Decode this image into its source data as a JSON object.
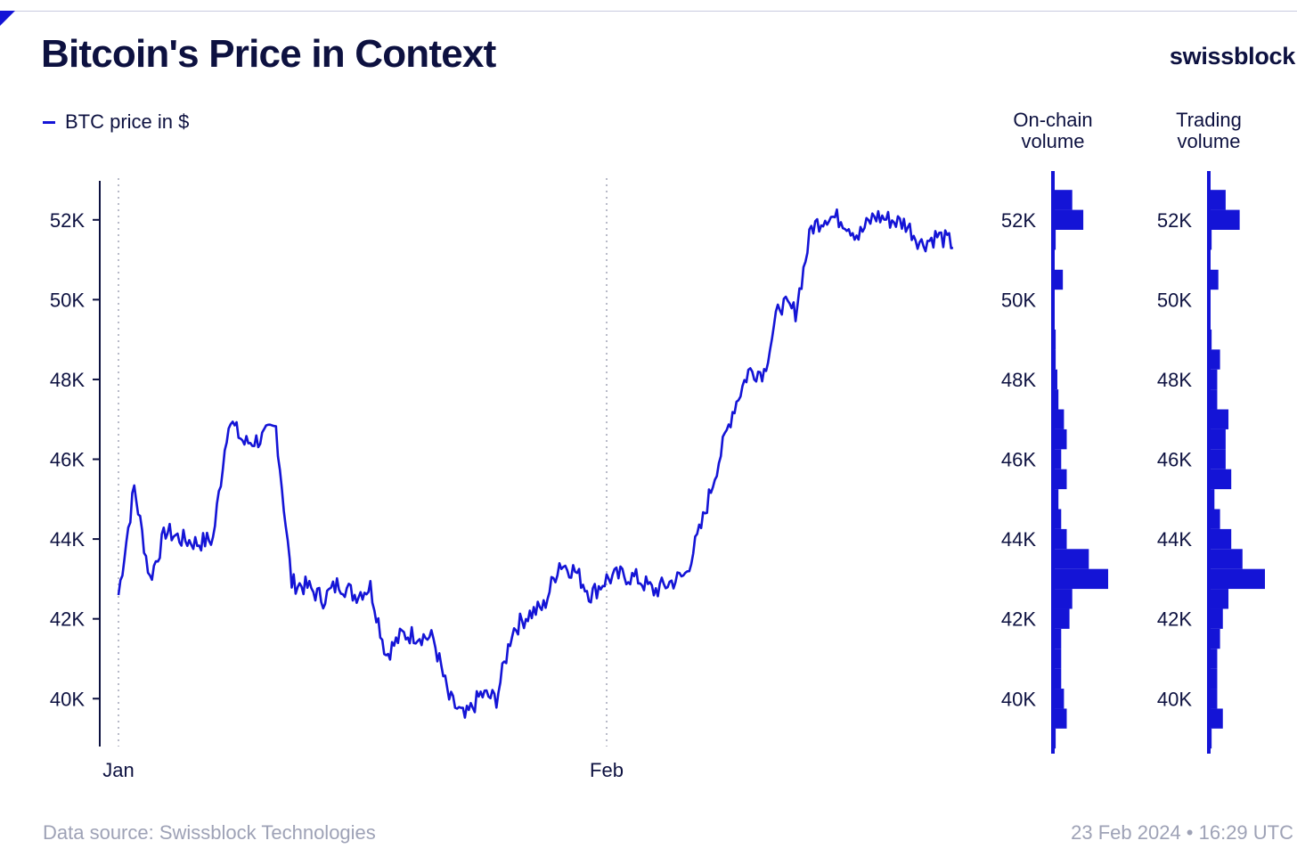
{
  "header": {
    "title": "Bitcoin's Price in Context",
    "brand": "swissblock"
  },
  "footer": {
    "source": "Data source: Swissblock Technologies",
    "timestamp": "23 Feb 2024 • 16:29 UTC"
  },
  "colors": {
    "series": "#1414d6",
    "text": "#0d1140",
    "muted": "#9ea2b6",
    "grid": "#b8bac8"
  },
  "chart_data": [
    {
      "type": "line",
      "legend": [
        "BTC price in $"
      ],
      "x_ticks": [
        "Jan",
        "Feb"
      ],
      "y_ticks": [
        "40K",
        "42K",
        "44K",
        "46K",
        "48K",
        "50K",
        "52K"
      ],
      "y_tick_values": [
        40000,
        42000,
        44000,
        46000,
        48000,
        50000,
        52000
      ],
      "ylim": [
        38800,
        53000
      ],
      "xlim": [
        "2024-01-01",
        "2024-02-23"
      ],
      "grid": "vertical dotted lines at Jan and Feb",
      "legend_position": "top-left",
      "series": [
        {
          "name": "BTC price in $",
          "x": [
            "2024-01-01",
            "2024-01-02",
            "2024-01-03",
            "2024-01-04",
            "2024-01-05",
            "2024-01-06",
            "2024-01-07",
            "2024-01-08",
            "2024-01-09",
            "2024-01-10",
            "2024-01-11",
            "2024-01-12",
            "2024-01-13",
            "2024-01-14",
            "2024-01-15",
            "2024-01-16",
            "2024-01-17",
            "2024-01-18",
            "2024-01-19",
            "2024-01-20",
            "2024-01-21",
            "2024-01-22",
            "2024-01-23",
            "2024-01-24",
            "2024-01-25",
            "2024-01-26",
            "2024-01-27",
            "2024-01-28",
            "2024-01-29",
            "2024-01-30",
            "2024-01-31",
            "2024-02-01",
            "2024-02-02",
            "2024-02-03",
            "2024-02-04",
            "2024-02-05",
            "2024-02-06",
            "2024-02-07",
            "2024-02-08",
            "2024-02-09",
            "2024-02-10",
            "2024-02-11",
            "2024-02-12",
            "2024-02-13",
            "2024-02-14",
            "2024-02-15",
            "2024-02-16",
            "2024-02-17",
            "2024-02-18",
            "2024-02-19",
            "2024-02-20",
            "2024-02-21",
            "2024-02-22",
            "2024-02-23"
          ],
          "values": [
            42600,
            45300,
            43000,
            44200,
            44000,
            43900,
            44000,
            47000,
            46400,
            46500,
            46800,
            42900,
            42800,
            42500,
            42900,
            42600,
            42800,
            41100,
            41600,
            41600,
            41500,
            40000,
            39500,
            40100,
            40000,
            41700,
            42100,
            42300,
            43400,
            43200,
            42600,
            43000,
            43100,
            43000,
            42700,
            42900,
            43100,
            44300,
            45800,
            47200,
            48200,
            48200,
            49900,
            49700,
            51800,
            52100,
            52000,
            51600,
            52100,
            52000,
            51900,
            51400,
            51600,
            51400
          ]
        }
      ]
    },
    {
      "type": "bar",
      "title": "On-chain volume",
      "orientation": "horizontal",
      "y_ticks": [
        "40K",
        "42K",
        "44K",
        "46K",
        "48K",
        "50K",
        "52K"
      ],
      "ylim": [
        38800,
        53000
      ],
      "price_bins": [
        39000,
        39500,
        40000,
        40500,
        41000,
        41500,
        42000,
        42500,
        43000,
        43500,
        44000,
        44500,
        45000,
        45500,
        46000,
        46500,
        47000,
        47500,
        48000,
        48500,
        49000,
        49500,
        50000,
        50500,
        51000,
        51500,
        52000,
        52500
      ],
      "values": [
        0.05,
        0.25,
        0.2,
        0.15,
        0.15,
        0.15,
        0.3,
        0.35,
        1.0,
        0.65,
        0.25,
        0.15,
        0.1,
        0.25,
        0.15,
        0.25,
        0.2,
        0.1,
        0.08,
        0.05,
        0.05,
        0.03,
        0.03,
        0.18,
        0.03,
        0.05,
        0.55,
        0.35
      ]
    },
    {
      "type": "bar",
      "title": "Trading volume",
      "orientation": "horizontal",
      "y_ticks": [
        "40K",
        "42K",
        "44K",
        "46K",
        "48K",
        "50K",
        "52K"
      ],
      "ylim": [
        38800,
        53000
      ],
      "price_bins": [
        39000,
        39500,
        40000,
        40500,
        41000,
        41500,
        42000,
        42500,
        43000,
        43500,
        44000,
        44500,
        45000,
        45500,
        46000,
        46500,
        47000,
        47500,
        48000,
        48500,
        49000,
        49500,
        50000,
        50500,
        51000,
        51500,
        52000,
        52500
      ],
      "values": [
        0.05,
        0.25,
        0.15,
        0.15,
        0.15,
        0.2,
        0.25,
        0.35,
        1.0,
        0.6,
        0.4,
        0.2,
        0.1,
        0.4,
        0.3,
        0.3,
        0.35,
        0.15,
        0.15,
        0.2,
        0.05,
        0.03,
        0.03,
        0.17,
        0.03,
        0.05,
        0.55,
        0.3
      ]
    }
  ]
}
